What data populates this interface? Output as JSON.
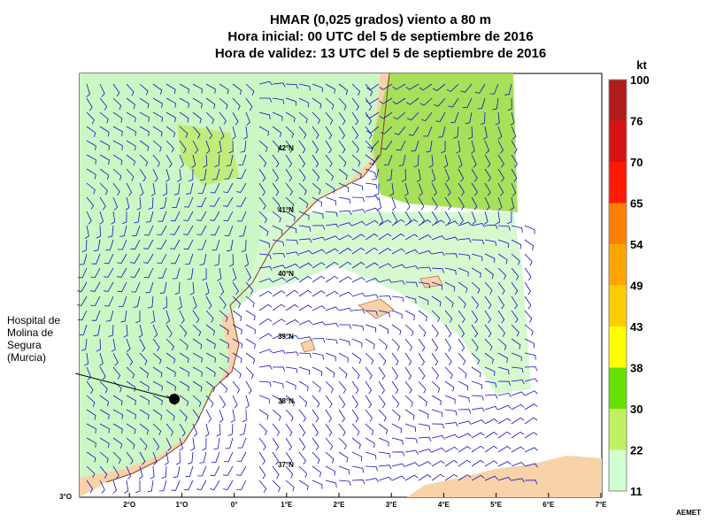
{
  "title": [
    "HMAR (0,025 grados) viento a 80 m",
    "Hora inicial: 00 UTC del 5 de septiembre de 2016",
    "Hora de validez: 13 UTC del 5 de septiembre de 2016"
  ],
  "colorbar": {
    "unit": "kt",
    "levels": [
      100,
      76,
      70,
      65,
      54,
      49,
      43,
      38,
      30,
      22,
      11
    ],
    "colors": [
      "#b01c1c",
      "#d41414",
      "#ff1a00",
      "#ff7f00",
      "#ffa500",
      "#ffcc00",
      "#ffff00",
      "#66e000",
      "#c0f060",
      "#d0ffd0"
    ]
  },
  "lat_labels": [
    "42°N",
    "41°N",
    "40°N",
    "39°N",
    "38°N",
    "37°N"
  ],
  "lon_labels": [
    "3°O",
    "2°O",
    "1°O",
    "0°",
    "1°E",
    "2°E",
    "3°E",
    "4°E",
    "5°E",
    "6°E",
    "7°E"
  ],
  "annotation": [
    "Hospital de",
    "Molina de",
    "Segura",
    "(Murcia)"
  ],
  "credit": "AEMET"
}
